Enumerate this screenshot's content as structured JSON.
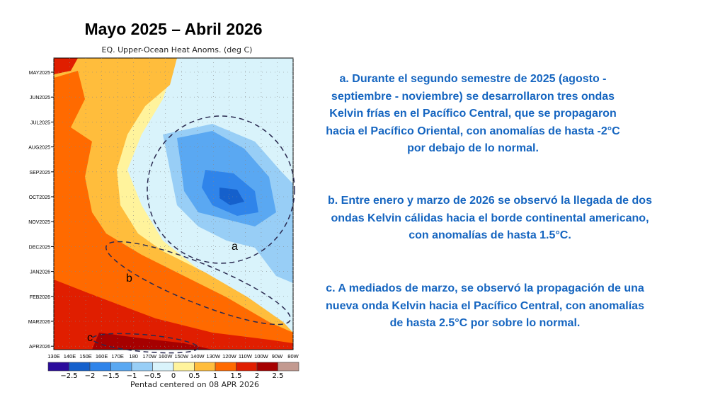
{
  "slide": {
    "title": "Mayo 2025 – Abril 2026",
    "notes": [
      "a. Durante el segundo semestre de 2025 (agosto - septiembre - noviembre) se desarrollaron tres ondas Kelvin frías en el Pacífico Central, que se propagaron hacia el Pacífico Oriental, con anomalías de hasta -2°C por debajo de lo normal.",
      "b. Entre enero y marzo de 2026 se observó la llegada de dos ondas Kelvin cálidas hacia el borde continental americano, con anomalías de hasta 1.5°C.",
      "c. A mediados de marzo, se observó la propagación de una nueva onda Kelvin hacia el Pacífico Central, con anomalías de hasta 2.5°C por sobre lo normal."
    ]
  },
  "chart_data": {
    "type": "heatmap",
    "title": "EQ. Upper-Ocean Heat Anoms. (deg C)",
    "xlabel": "Pentad centered on 08 APR 2026",
    "x_ticks": [
      "130E",
      "140E",
      "150E",
      "160E",
      "170E",
      "180",
      "170W",
      "160W",
      "150W",
      "140W",
      "130W",
      "120W",
      "110W",
      "100W",
      "90W",
      "80W"
    ],
    "y_ticks": [
      "MAY2025",
      "JUN2025",
      "JUL2025",
      "AUG2025",
      "SEP2025",
      "OCT2025",
      "NOV2025",
      "DEC2025",
      "JAN2026",
      "FEB2026",
      "MAR2026",
      "APR2026"
    ],
    "colorbar": {
      "labels": [
        "-2.5",
        "-2",
        "-1.5",
        "-1",
        "-0.5",
        "0",
        "0.5",
        "1",
        "1.5",
        "2",
        "2.5"
      ],
      "colors": [
        "#2b0c9c",
        "#1560cc",
        "#2f84ea",
        "#5aa8f2",
        "#98cef6",
        "#d9f3fb",
        "#fff39c",
        "#ffbd3c",
        "#ff6a00",
        "#e01e00",
        "#a60000",
        "#c39a90"
      ]
    },
    "annotations": [
      "a",
      "b",
      "c"
    ]
  }
}
